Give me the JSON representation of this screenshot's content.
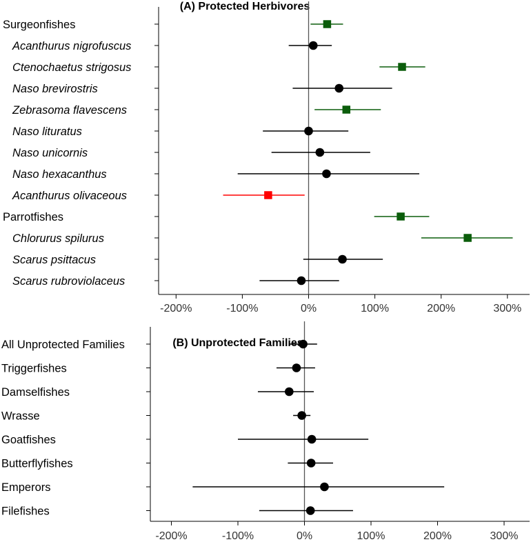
{
  "chart_data": [
    {
      "type": "scatter",
      "title": "(A) Protected Herbivores",
      "xlabel": "",
      "ylabel": "",
      "xlim": [
        -230,
        340
      ],
      "x_ticks": [
        -200,
        -100,
        0,
        100,
        200,
        300
      ],
      "x_tick_labels": [
        "-200%",
        "-100%",
        "0%",
        "100%",
        "200%",
        "300%"
      ],
      "reference_line": 0,
      "colors": {
        "positive": "#0b5d0b",
        "negative": "#ff0000",
        "neutral": "#000000"
      },
      "rows": [
        {
          "label": "Surgeonfishes",
          "italic": false,
          "estimate": 28,
          "low": 3,
          "high": 52,
          "status": "positive"
        },
        {
          "label": "Acanthurus nigrofuscus",
          "italic": true,
          "estimate": 7,
          "low": -30,
          "high": 35,
          "status": "neutral"
        },
        {
          "label": "Ctenochaetus strigosus",
          "italic": true,
          "estimate": 141,
          "low": 107,
          "high": 176,
          "status": "positive"
        },
        {
          "label": "Naso brevirostris",
          "italic": true,
          "estimate": 46,
          "low": -24,
          "high": 126,
          "status": "neutral"
        },
        {
          "label": "Zebrasoma flavescens",
          "italic": true,
          "estimate": 57,
          "low": 9,
          "high": 109,
          "status": "positive"
        },
        {
          "label": "Naso lituratus",
          "italic": true,
          "estimate": 0,
          "low": -69,
          "high": 60,
          "status": "neutral"
        },
        {
          "label": "Naso unicornis",
          "italic": true,
          "estimate": 17,
          "low": -56,
          "high": 93,
          "status": "neutral"
        },
        {
          "label": "Naso hexacanthus",
          "italic": true,
          "estimate": 27,
          "low": -107,
          "high": 167,
          "status": "neutral"
        },
        {
          "label": "Acanthurus olivaceous",
          "italic": true,
          "estimate": -61,
          "low": -129,
          "high": -6,
          "status": "negative"
        },
        {
          "label": "Parrotfishes",
          "italic": false,
          "estimate": 139,
          "low": 99,
          "high": 182,
          "status": "positive"
        },
        {
          "label": "Chlorurus spilurus",
          "italic": true,
          "estimate": 240,
          "low": 170,
          "high": 308,
          "status": "positive"
        },
        {
          "label": "Scarus psittacus",
          "italic": true,
          "estimate": 51,
          "low": -8,
          "high": 112,
          "status": "neutral"
        },
        {
          "label": "Scarus rubroviolaceus",
          "italic": true,
          "estimate": -11,
          "low": -74,
          "high": 46,
          "status": "neutral"
        }
      ]
    },
    {
      "type": "scatter",
      "title": "(B) Unprotected Families",
      "xlabel": "",
      "ylabel": "",
      "xlim": [
        -245,
        345
      ],
      "x_ticks": [
        -200,
        -100,
        0,
        100,
        200,
        300
      ],
      "x_tick_labels": [
        "-200%",
        "-100%",
        "0%",
        "100%",
        "200%",
        "300%"
      ],
      "reference_line": 0,
      "colors": {
        "neutral": "#000000"
      },
      "rows": [
        {
          "label": "All Unprotected Families",
          "italic": false,
          "estimate": -2,
          "low": -22,
          "high": 19,
          "status": "neutral"
        },
        {
          "label": "Triggerfishes",
          "italic": false,
          "estimate": -12,
          "low": -42,
          "high": 16,
          "status": "neutral"
        },
        {
          "label": "Damselfishes",
          "italic": false,
          "estimate": -23,
          "low": -70,
          "high": 14,
          "status": "neutral"
        },
        {
          "label": "Wrasse",
          "italic": false,
          "estimate": -4,
          "low": -17,
          "high": 9,
          "status": "neutral"
        },
        {
          "label": "Goatfishes",
          "italic": false,
          "estimate": 11,
          "low": -100,
          "high": 96,
          "status": "neutral"
        },
        {
          "label": "Butterflyfishes",
          "italic": false,
          "estimate": 10,
          "low": -25,
          "high": 43,
          "status": "neutral"
        },
        {
          "label": "Emperors",
          "italic": false,
          "estimate": 30,
          "low": -168,
          "high": 210,
          "status": "neutral"
        },
        {
          "label": "Filefishes",
          "italic": false,
          "estimate": 9,
          "low": -68,
          "high": 73,
          "status": "neutral"
        }
      ]
    }
  ]
}
